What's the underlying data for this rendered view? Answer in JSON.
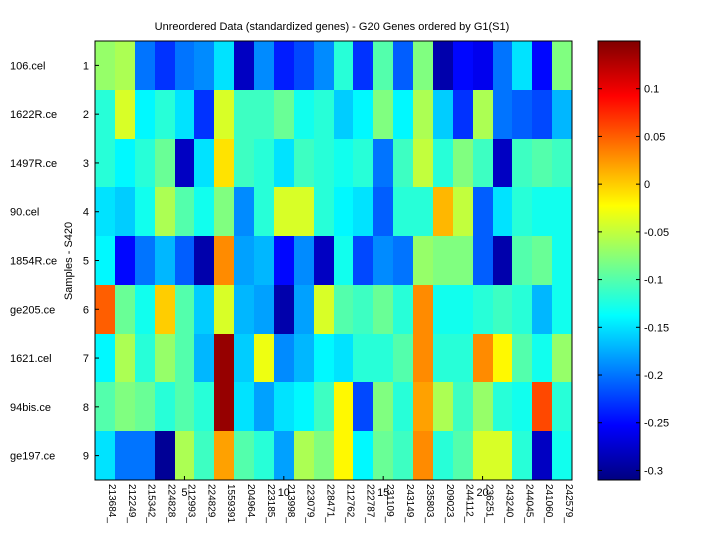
{
  "chart_data": {
    "type": "heatmap",
    "title": "Unreordered Data (standardized genes) - G20 Genes ordered by G1(S1)",
    "ylabel": "Samples - S420",
    "xlabel": "",
    "colormap": "jet",
    "clim": [
      -0.31,
      0.15
    ],
    "row_labels": [
      "106.cel",
      "1622R.ce",
      "1497R.ce",
      "90.cel",
      "1854R.ce",
      "ge205.ce",
      "1621.cel",
      "94bis.ce",
      "ge197.ce"
    ],
    "row_ticks": [
      "1",
      "2",
      "3",
      "4",
      "5",
      "6",
      "7",
      "8",
      "9"
    ],
    "col_labels": [
      "213684_",
      "212249_",
      "215342_",
      "224828_",
      "212993_",
      "224829_",
      "1559391",
      "204964_",
      "223185_",
      "213998_",
      "223079_",
      "228471_",
      "212762_",
      "222787_",
      "231109_",
      "243149_",
      "235803_",
      "209023_",
      "244112_",
      "236251_",
      "243240_",
      "244045_",
      "241060_",
      "242579_"
    ],
    "col_ticks": {
      "positions": [
        5,
        10,
        15,
        20
      ],
      "labels": [
        "5",
        "10",
        "15",
        "20"
      ]
    },
    "colorbar": {
      "ticks": [
        0.1,
        0.05,
        0,
        -0.05,
        -0.1,
        -0.15,
        -0.2,
        -0.25,
        -0.3
      ],
      "labels": [
        "0.1",
        "0.05",
        "0",
        "-0.05",
        "-0.1",
        "-0.15",
        "-0.2",
        "-0.25",
        "-0.3"
      ]
    },
    "values": [
      [
        -0.07,
        -0.06,
        -0.2,
        -0.23,
        -0.2,
        -0.19,
        -0.15,
        -0.28,
        -0.19,
        -0.24,
        -0.22,
        -0.19,
        -0.12,
        -0.23,
        -0.1,
        -0.21,
        -0.08,
        -0.29,
        -0.25,
        -0.26,
        -0.2,
        -0.15,
        -0.25,
        -0.08
      ],
      [
        -0.12,
        -0.04,
        -0.14,
        -0.12,
        -0.15,
        -0.23,
        -0.04,
        -0.11,
        -0.11,
        -0.09,
        -0.13,
        -0.12,
        -0.16,
        -0.14,
        -0.08,
        -0.14,
        -0.06,
        -0.16,
        -0.23,
        -0.06,
        -0.2,
        -0.21,
        -0.22,
        -0.17
      ],
      [
        -0.12,
        -0.14,
        -0.12,
        -0.09,
        -0.28,
        -0.15,
        -0.01,
        -0.11,
        -0.12,
        -0.15,
        -0.11,
        -0.12,
        -0.13,
        -0.12,
        -0.2,
        -0.11,
        -0.05,
        -0.12,
        -0.08,
        -0.11,
        -0.28,
        -0.11,
        -0.1,
        -0.11
      ],
      [
        -0.15,
        -0.16,
        -0.13,
        -0.06,
        -0.1,
        -0.13,
        -0.08,
        -0.19,
        -0.12,
        -0.04,
        -0.04,
        -0.12,
        -0.14,
        -0.15,
        -0.21,
        -0.12,
        -0.12,
        0.01,
        -0.05,
        -0.21,
        -0.15,
        -0.12,
        -0.13,
        -0.13
      ],
      [
        -0.14,
        -0.25,
        -0.2,
        -0.17,
        -0.21,
        -0.29,
        0.03,
        -0.18,
        -0.17,
        -0.25,
        -0.19,
        -0.28,
        -0.13,
        -0.22,
        -0.19,
        -0.2,
        -0.07,
        -0.08,
        -0.08,
        -0.21,
        -0.29,
        -0.1,
        -0.09,
        -0.13
      ],
      [
        0.05,
        -0.09,
        -0.13,
        0.0,
        -0.1,
        -0.16,
        -0.04,
        -0.17,
        -0.18,
        -0.29,
        -0.18,
        -0.04,
        -0.1,
        -0.11,
        -0.09,
        -0.12,
        0.03,
        -0.13,
        -0.13,
        -0.12,
        -0.11,
        -0.12,
        -0.17,
        -0.13
      ],
      [
        -0.14,
        -0.06,
        -0.12,
        -0.07,
        -0.1,
        -0.17,
        0.14,
        -0.16,
        -0.03,
        -0.19,
        -0.17,
        -0.14,
        -0.15,
        -0.12,
        -0.12,
        -0.1,
        0.03,
        -0.12,
        -0.12,
        0.03,
        -0.02,
        -0.1,
        -0.13,
        -0.07
      ],
      [
        -0.1,
        -0.08,
        -0.09,
        -0.12,
        -0.1,
        -0.12,
        0.14,
        -0.15,
        -0.18,
        -0.15,
        -0.14,
        -0.11,
        -0.02,
        -0.22,
        -0.08,
        -0.12,
        0.02,
        -0.06,
        -0.11,
        -0.07,
        -0.12,
        -0.13,
        0.06,
        -0.12
      ],
      [
        -0.15,
        -0.2,
        -0.2,
        -0.3,
        -0.06,
        -0.11,
        0.02,
        -0.1,
        -0.12,
        -0.18,
        -0.06,
        -0.08,
        -0.02,
        -0.14,
        -0.09,
        -0.11,
        0.03,
        -0.12,
        -0.1,
        -0.04,
        -0.04,
        -0.12,
        -0.28,
        -0.13
      ]
    ]
  }
}
